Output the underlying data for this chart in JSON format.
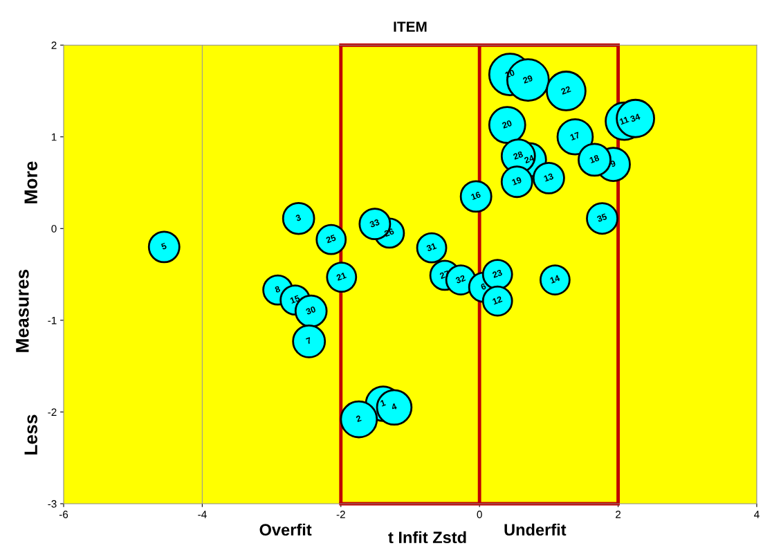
{
  "chart_data": {
    "type": "bubble",
    "title": "ITEM",
    "xlabel": "t Infit Zstd",
    "ylabel": "Measures",
    "xlim": [
      -6,
      4
    ],
    "xticks": [
      -6,
      -4,
      -2,
      0,
      2,
      4
    ],
    "ylim": [
      -3,
      2
    ],
    "yticks": [
      -3,
      -2,
      -1,
      0,
      1,
      2
    ],
    "series": [
      {
        "color": "#00ffff",
        "x": [
          0.44,
          0.7,
          1.25,
          0.4,
          1.38,
          2.09,
          2.25,
          0.72,
          0.56,
          1.93,
          1.66,
          0.54,
          1.0,
          -0.05,
          1.77,
          -2.61,
          -1.3,
          -1.51,
          -2.14,
          -4.55,
          -0.69,
          -1.99,
          -0.5,
          -0.27,
          0.06,
          0.26,
          0.26,
          1.09,
          -2.91,
          -2.66,
          -2.43,
          -2.46,
          -1.39,
          -1.23,
          -1.74
        ],
        "values": [
          1.68,
          1.62,
          1.5,
          1.13,
          1.0,
          1.17,
          1.2,
          0.75,
          0.79,
          0.7,
          0.75,
          0.51,
          0.55,
          0.35,
          0.11,
          0.11,
          -0.05,
          0.05,
          -0.12,
          -0.2,
          -0.21,
          -0.53,
          -0.51,
          -0.56,
          -0.64,
          -0.5,
          -0.79,
          -0.56,
          -0.67,
          -0.78,
          -0.9,
          -1.23,
          -1.91,
          -1.95,
          -2.08
        ],
        "sizes": [
          1,
          1,
          0.87,
          0.75,
          0.72,
          0.81,
          0.81,
          0.64,
          0.64,
          0.64,
          0.59,
          0.54,
          0.54,
          0.54,
          0.54,
          0.56,
          0.49,
          0.54,
          0.49,
          0.54,
          0.49,
          0.49,
          0.49,
          0.49,
          0.49,
          0.49,
          0.49,
          0.49,
          0.49,
          0.49,
          0.56,
          0.59,
          0.69,
          0.69,
          0.75
        ]
      }
    ],
    "ref_lines": [
      {
        "axis": "x",
        "value": -4,
        "color": "#999999"
      },
      {
        "axis": "x",
        "value": -2,
        "color": "#c00000"
      },
      {
        "axis": "x",
        "value": 0,
        "color": "#c00000"
      },
      {
        "axis": "x",
        "value": 2,
        "color": "#c00000"
      }
    ],
    "annotations": [
      "More",
      "Less",
      "Overfit",
      "Underfit",
      {
        "text": "10",
        "x": 0.44,
        "y": 1.68
      },
      {
        "text": "29",
        "x": 0.7,
        "y": 1.62
      },
      {
        "text": "22",
        "x": 1.25,
        "y": 1.5
      },
      {
        "text": "20",
        "x": 0.4,
        "y": 1.13
      },
      {
        "text": "17",
        "x": 1.38,
        "y": 1.0
      },
      {
        "text": "11",
        "x": 2.09,
        "y": 1.17
      },
      {
        "text": "34",
        "x": 2.25,
        "y": 1.2
      },
      {
        "text": "24",
        "x": 0.72,
        "y": 0.75
      },
      {
        "text": "28",
        "x": 0.56,
        "y": 0.79
      },
      {
        "text": "9",
        "x": 1.93,
        "y": 0.7
      },
      {
        "text": "18",
        "x": 1.66,
        "y": 0.75
      },
      {
        "text": "19",
        "x": 0.54,
        "y": 0.51
      },
      {
        "text": "13",
        "x": 1.0,
        "y": 0.55
      },
      {
        "text": "16",
        "x": -0.05,
        "y": 0.35
      },
      {
        "text": "35",
        "x": 1.77,
        "y": 0.11
      },
      {
        "text": "3",
        "x": -2.61,
        "y": 0.11
      },
      {
        "text": "26",
        "x": -1.3,
        "y": -0.05
      },
      {
        "text": "33",
        "x": -1.51,
        "y": 0.05
      },
      {
        "text": "25",
        "x": -2.14,
        "y": -0.12
      },
      {
        "text": "5",
        "x": -4.55,
        "y": -0.2
      },
      {
        "text": "31",
        "x": -0.69,
        "y": -0.21
      },
      {
        "text": "21",
        "x": -1.99,
        "y": -0.53
      },
      {
        "text": "27",
        "x": -0.5,
        "y": -0.51
      },
      {
        "text": "32",
        "x": -0.27,
        "y": -0.56
      },
      {
        "text": "6",
        "x": 0.06,
        "y": -0.64
      },
      {
        "text": "23",
        "x": 0.26,
        "y": -0.5
      },
      {
        "text": "12",
        "x": 0.26,
        "y": -0.79
      },
      {
        "text": "14",
        "x": 1.09,
        "y": -0.56
      },
      {
        "text": "8",
        "x": -2.91,
        "y": -0.67
      },
      {
        "text": "15",
        "x": -2.66,
        "y": -0.78
      },
      {
        "text": "30",
        "x": -2.43,
        "y": -0.9
      },
      {
        "text": "7",
        "x": -2.46,
        "y": -1.23
      },
      {
        "text": "1",
        "x": -1.39,
        "y": -1.91
      },
      {
        "text": "4",
        "x": -1.23,
        "y": -1.95
      },
      {
        "text": "2",
        "x": -1.74,
        "y": -2.08
      }
    ]
  }
}
